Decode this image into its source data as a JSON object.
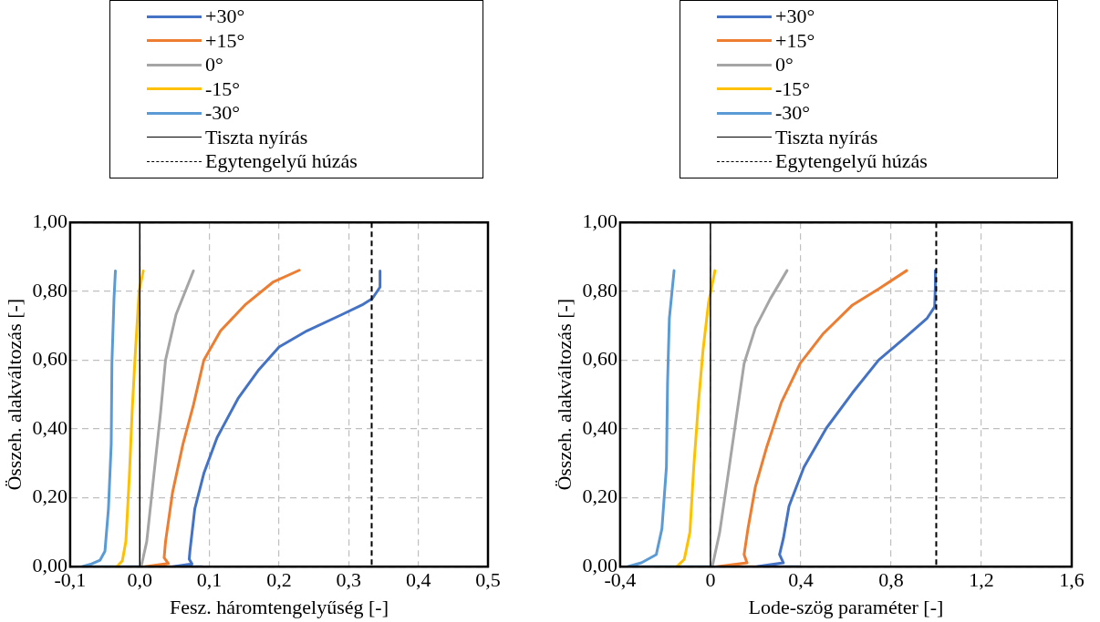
{
  "chart_data": [
    {
      "type": "line",
      "xlabel": "Fesz. háromtengelyűség [-]",
      "ylabel": "Összeh. alakváltozás [-]",
      "legend": "top",
      "grid": true,
      "marker": "none",
      "xlim": [
        -0.1,
        0.5
      ],
      "ylim": [
        0,
        1
      ],
      "xticks": [
        {
          "value": -0.1,
          "label": "-0,1"
        },
        {
          "value": 0,
          "label": "0,0"
        },
        {
          "value": 0.1,
          "label": "0,1"
        },
        {
          "value": 0.2,
          "label": "0,2"
        },
        {
          "value": 0.3,
          "label": "0,3"
        },
        {
          "value": 0.4,
          "label": "0,4"
        },
        {
          "value": 0.5,
          "label": "0,5"
        }
      ],
      "yticks": [
        {
          "value": 0,
          "label": "0,00"
        },
        {
          "value": 0.2,
          "label": "0,20"
        },
        {
          "value": 0.4,
          "label": "0,40"
        },
        {
          "value": 0.6,
          "label": "0,60"
        },
        {
          "value": 0.8,
          "label": "0,80"
        },
        {
          "value": 1,
          "label": "1,00"
        }
      ],
      "series": [
        {
          "name": "+30°",
          "color": "#4472c4",
          "x": [
            0.09,
            0.047,
            0.075,
            0.071,
            0.072,
            0.079,
            0.092,
            0.111,
            0.141,
            0.171,
            0.2,
            0.24,
            0.29,
            0.319,
            0.334,
            0.345,
            0.345
          ],
          "values": [
            0,
            0,
            0.008,
            0.022,
            0.045,
            0.168,
            0.271,
            0.375,
            0.488,
            0.572,
            0.638,
            0.685,
            0.732,
            0.76,
            0.779,
            0.812,
            0.859
          ]
        },
        {
          "name": "+15°",
          "color": "#ed7d31",
          "x": [
            0.046,
            0.007,
            0.041,
            0.035,
            0.037,
            0.047,
            0.062,
            0.077,
            0.092,
            0.116,
            0.151,
            0.191,
            0.229
          ],
          "values": [
            0,
            0,
            0.009,
            0.026,
            0.073,
            0.215,
            0.356,
            0.469,
            0.6,
            0.685,
            0.76,
            0.826,
            0.861
          ]
        },
        {
          "name": "0°",
          "color": "#a5a5a5",
          "x": [
            0.002,
            0.01,
            0.02,
            0.03,
            0.037,
            0.052,
            0.077
          ],
          "values": [
            0,
            0.073,
            0.262,
            0.45,
            0.6,
            0.732,
            0.859
          ]
        },
        {
          "name": "-15°",
          "color": "#ffc000",
          "x": [
            -0.033,
            -0.025,
            -0.02,
            -0.015,
            -0.011,
            -0.007,
            -0.001,
            0.005
          ],
          "values": [
            0,
            0.017,
            0.073,
            0.262,
            0.45,
            0.6,
            0.8,
            0.859
          ]
        },
        {
          "name": "-30°",
          "color": "#5b9bd5",
          "x": [
            0,
            -0.083,
            -0.069,
            -0.057,
            -0.05,
            -0.045,
            -0.041,
            -0.04,
            -0.037,
            -0.035
          ],
          "values": [
            0,
            0,
            0.008,
            0.019,
            0.045,
            0.168,
            0.356,
            0.591,
            0.779,
            0.859
          ]
        }
      ],
      "ref_lines": [
        {
          "axis": "x",
          "value": 0,
          "label": "Tiszta nyírás",
          "color": "#000000",
          "line_style": "solid"
        },
        {
          "axis": "x",
          "value": 0.333,
          "label": "Egytengelyű húzás",
          "color": "#000000",
          "line_style": "dashed"
        }
      ]
    },
    {
      "type": "line",
      "xlabel": "Lode-szög paraméter [-]",
      "ylabel": "Összeh. alakváltozás [-]",
      "legend": "top",
      "grid": true,
      "marker": "none",
      "xlim": [
        -0.4,
        1.6
      ],
      "ylim": [
        0,
        1
      ],
      "xticks": [
        {
          "value": -0.4,
          "label": "-0,4"
        },
        {
          "value": 0,
          "label": "0"
        },
        {
          "value": 0.4,
          "label": "0,4"
        },
        {
          "value": 0.8,
          "label": "0,8"
        },
        {
          "value": 1.2,
          "label": "1,2"
        },
        {
          "value": 1.6,
          "label": "1,6"
        }
      ],
      "yticks": [
        {
          "value": 0,
          "label": "0,00"
        },
        {
          "value": 0.2,
          "label": "0,20"
        },
        {
          "value": 0.4,
          "label": "0,40"
        },
        {
          "value": 0.6,
          "label": "0,60"
        },
        {
          "value": 0.8,
          "label": "0,80"
        },
        {
          "value": 1,
          "label": "1,00"
        }
      ],
      "series": [
        {
          "name": "+30°",
          "color": "#4472c4",
          "x": [
            0.394,
            0.202,
            0.323,
            0.306,
            0.323,
            0.348,
            0.414,
            0.513,
            0.629,
            0.745,
            0.861,
            0.96,
            0.993,
            0.996,
            0.996
          ],
          "values": [
            0,
            0,
            0.011,
            0.035,
            0.082,
            0.176,
            0.289,
            0.402,
            0.505,
            0.6,
            0.665,
            0.722,
            0.755,
            0.816,
            0.86
          ]
        },
        {
          "name": "+15°",
          "color": "#ed7d31",
          "x": [
            0.199,
            0.028,
            0.162,
            0.149,
            0.166,
            0.199,
            0.248,
            0.314,
            0.397,
            0.497,
            0.629,
            0.745,
            0.869
          ],
          "values": [
            0,
            0,
            0.011,
            0.035,
            0.11,
            0.232,
            0.345,
            0.477,
            0.59,
            0.675,
            0.76,
            0.807,
            0.86
          ]
        },
        {
          "name": "0°",
          "color": "#a5a5a5",
          "x": [
            0.008,
            0.041,
            0.083,
            0.116,
            0.149,
            0.199,
            0.265,
            0.339
          ],
          "values": [
            0,
            0.1,
            0.289,
            0.44,
            0.59,
            0.694,
            0.778,
            0.86
          ]
        },
        {
          "name": "-15°",
          "color": "#ffc000",
          "x": [
            -0.149,
            -0.116,
            -0.091,
            -0.074,
            -0.053,
            -0.033,
            -0.008,
            0.02
          ],
          "values": [
            0,
            0.021,
            0.1,
            0.289,
            0.477,
            0.628,
            0.769,
            0.86
          ]
        },
        {
          "name": "-30°",
          "color": "#5b9bd5",
          "x": [
            0,
            -0.367,
            -0.306,
            -0.24,
            -0.215,
            -0.195,
            -0.19,
            -0.182,
            -0.161
          ],
          "values": [
            0,
            0,
            0.011,
            0.035,
            0.11,
            0.289,
            0.534,
            0.722,
            0.86
          ]
        }
      ],
      "ref_lines": [
        {
          "axis": "x",
          "value": 0,
          "label": "Tiszta nyírás",
          "color": "#000000",
          "line_style": "solid"
        },
        {
          "axis": "x",
          "value": 1,
          "label": "Egytengelyű húzás",
          "color": "#000000",
          "line_style": "dashed"
        }
      ]
    }
  ]
}
